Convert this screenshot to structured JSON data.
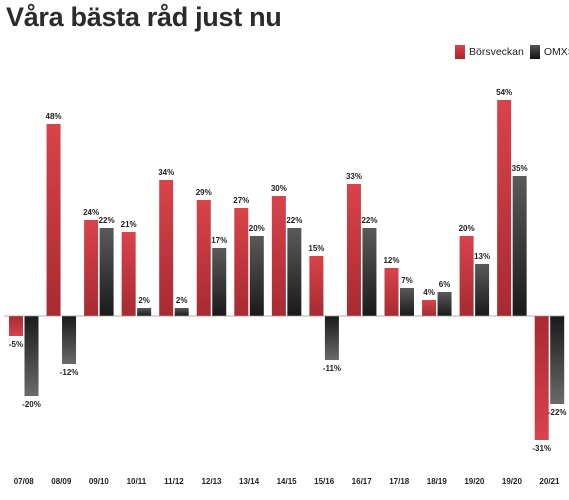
{
  "page": {
    "title": "Våra bästa råd just nu"
  },
  "colors": {
    "borsveckan": "#c0323a",
    "omxsgi": "#333333"
  },
  "chart_data": {
    "type": "bar",
    "title": "Våra bästa råd just nu",
    "xlabel": "",
    "ylabel": "",
    "legend_position": "top-right",
    "grid": false,
    "categories": [
      "07/08",
      "08/09",
      "09/10",
      "10/11",
      "11/12",
      "12/13",
      "13/14",
      "14/15",
      "15/16",
      "16/17",
      "17/18",
      "18/19",
      "19/20",
      "19/20",
      "20/21"
    ],
    "series": [
      {
        "name": "Börsveckan",
        "values": [
          -5,
          48,
          24,
          21,
          34,
          29,
          27,
          30,
          15,
          33,
          12,
          4,
          20,
          54,
          -31
        ],
        "labels": [
          "-5%",
          "48%",
          "24%",
          "21%",
          "34%",
          "29%",
          "27%",
          "30%",
          "15%",
          "33%",
          "12%",
          "4%",
          "20%",
          "54%",
          "-31%"
        ]
      },
      {
        "name": "OMXSGI",
        "values": [
          -20,
          -12,
          22,
          2,
          2,
          17,
          20,
          22,
          -11,
          22,
          7,
          6,
          13,
          35,
          -22
        ],
        "labels": [
          "-20%",
          "-12%",
          "22%",
          "2%",
          "2%",
          "17%",
          "20%",
          "22%",
          "-11%",
          "22%",
          "7%",
          "6%",
          "13%",
          "35%",
          "-22%"
        ]
      }
    ]
  }
}
